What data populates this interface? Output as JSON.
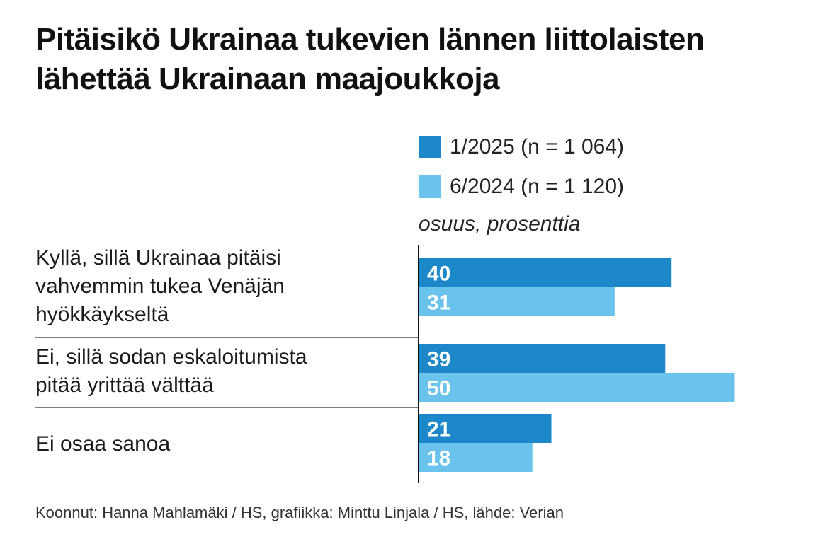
{
  "title": "Pitäisikö Ukrainaa tukevien lännen liittolaisten lähettää Ukrainaan maajoukkoja",
  "unit_label": "osuus, prosenttia",
  "footer": "Koonnut: Hanna Mahlamäki / HS, grafiikka: Minttu Linjala / HS, lähde: Verian",
  "colors": {
    "series_2025": "#1c88c9",
    "series_2024": "#6ac3ec",
    "bar_text": "#ffffff",
    "separator": "#555555",
    "axis": "#111111"
  },
  "chart_data": {
    "type": "bar",
    "orientation": "horizontal",
    "categories": [
      "Kyllä, sillä Ukrainaa pitäisi vahvemmin tukea Venäjän hyökkäykseltä",
      "Ei, sillä sodan eskaloitumista pitää yrittää välttää",
      "Ei osaa sanoa"
    ],
    "category_lines": [
      [
        "Kyllä, sillä Ukrainaa pitäisi",
        "vahvemmin tukea Venäjän",
        "hyökkäykseltä"
      ],
      [
        "Ei, sillä sodan eskaloitumista",
        "pitää yrittää välttää"
      ],
      [
        "Ei osaa sanoa"
      ]
    ],
    "series": [
      {
        "name": "1/2025 (n = 1 064)",
        "color": "#1c88c9",
        "values": [
          40,
          39,
          21
        ]
      },
      {
        "name": "6/2024 (n = 1 120)",
        "color": "#6ac3ec",
        "values": [
          31,
          50,
          18
        ]
      }
    ],
    "xlim": [
      0,
      50
    ],
    "grid": false,
    "legend_position": "top-right",
    "data_labels": true
  }
}
